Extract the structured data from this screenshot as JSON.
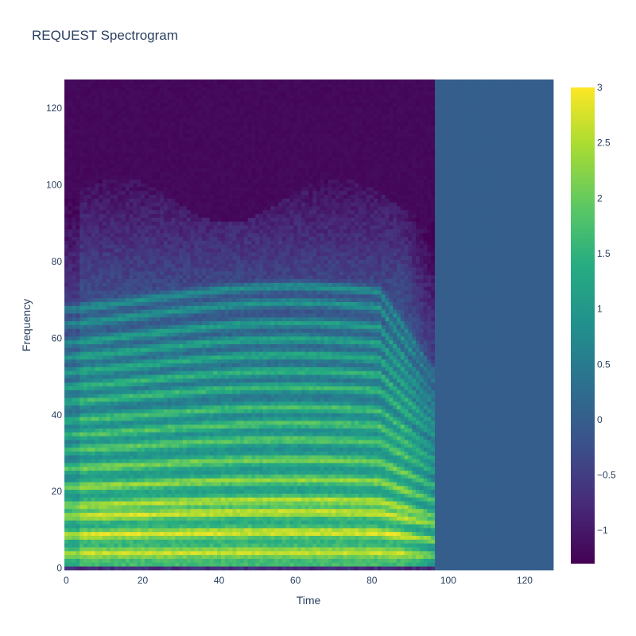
{
  "chart_data": {
    "type": "heatmap",
    "title": "REQUEST Spectrogram",
    "xlabel": "Time",
    "ylabel": "Frequency",
    "xlim": [
      0,
      127
    ],
    "ylim": [
      0,
      127
    ],
    "x_ticks": [
      "0",
      "20",
      "40",
      "60",
      "80",
      "100",
      "120"
    ],
    "x_tick_values": [
      0,
      20,
      40,
      60,
      80,
      100,
      120
    ],
    "y_ticks": [
      "0",
      "20",
      "40",
      "60",
      "80",
      "100",
      "120"
    ],
    "y_tick_values": [
      0,
      20,
      40,
      60,
      80,
      100,
      120
    ],
    "colorscale": "Viridis",
    "colorbar": {
      "range": [
        -1.3,
        3.0
      ],
      "ticks": [
        "3",
        "2.5",
        "2",
        "1.5",
        "1",
        "0.5",
        "0",
        "−0.5",
        "−1"
      ],
      "tick_values": [
        3,
        2.5,
        2,
        1.5,
        1,
        0.5,
        0,
        -0.5,
        -1
      ]
    },
    "grid_size": [
      128,
      128
    ],
    "signal_time_range": [
      0,
      96
    ],
    "padding_value": 0,
    "harmonic_bands": [
      {
        "frequency": 4,
        "level": 2.8
      },
      {
        "frequency": 9,
        "level": 3.0
      },
      {
        "frequency": 14,
        "level": 2.9
      },
      {
        "frequency": 17,
        "level": 2.7
      },
      {
        "frequency": 22,
        "level": 2.5
      },
      {
        "frequency": 27,
        "level": 2.3
      },
      {
        "frequency": 32,
        "level": 2.1
      },
      {
        "frequency": 36,
        "level": 2.0
      },
      {
        "frequency": 40,
        "level": 1.9
      },
      {
        "frequency": 45,
        "level": 1.8
      },
      {
        "frequency": 49,
        "level": 1.7
      },
      {
        "frequency": 53,
        "level": 1.5
      },
      {
        "frequency": 57,
        "level": 1.4
      },
      {
        "frequency": 61,
        "level": 1.3
      },
      {
        "frequency": 66,
        "level": 1.1
      },
      {
        "frequency": 70,
        "level": 1.0
      }
    ]
  }
}
